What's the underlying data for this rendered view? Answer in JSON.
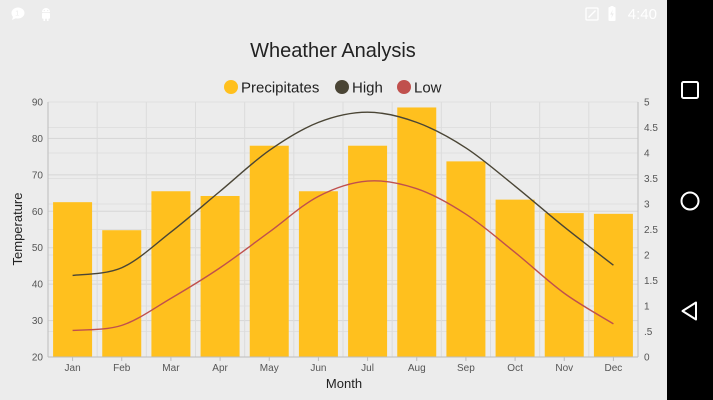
{
  "status": {
    "time": "4:40",
    "icons": [
      "chat-bubble-icon",
      "android-robot-icon",
      "signal-icon",
      "battery-icon"
    ]
  },
  "navigation": {
    "buttons": [
      "square-icon",
      "circle-icon",
      "triangle-back-icon"
    ]
  },
  "chart_data": {
    "type": "bar",
    "title": "Wheather Analysis",
    "categories": [
      "Jan",
      "Feb",
      "Mar",
      "Apr",
      "May",
      "Jun",
      "Jul",
      "Aug",
      "Sep",
      "Oct",
      "Nov",
      "Dec"
    ],
    "xlabel": "Month",
    "ylabel": "Temperature",
    "ylim": [
      20,
      90
    ],
    "y_ticks": [
      20,
      30,
      40,
      50,
      60,
      70,
      80,
      90
    ],
    "y2lim": [
      0,
      5
    ],
    "y2_ticks": [
      "0",
      ".5",
      "1",
      "1.5",
      "2",
      "2.5",
      "3",
      "3.5",
      "4",
      "4.5",
      "5"
    ],
    "legend_position": "top-center",
    "grid": true,
    "series": [
      {
        "name": "Precipitates",
        "type": "bar",
        "axis": "left",
        "color": "#ffc01e",
        "values": [
          62.5,
          54.8,
          65.5,
          64.2,
          78,
          65.5,
          78,
          88.5,
          73.7,
          63.2,
          59.5,
          59.3
        ]
      },
      {
        "name": "High",
        "type": "line",
        "axis": "right",
        "color": "#4a4535",
        "values": [
          1.6,
          1.75,
          2.45,
          3.25,
          4.05,
          4.6,
          4.8,
          4.6,
          4.1,
          3.35,
          2.55,
          1.8
        ]
      },
      {
        "name": "Low",
        "type": "line",
        "axis": "right",
        "color": "#c0504d",
        "values": [
          0.52,
          0.62,
          1.15,
          1.75,
          2.45,
          3.15,
          3.45,
          3.3,
          2.8,
          2.05,
          1.25,
          0.65
        ]
      }
    ]
  }
}
